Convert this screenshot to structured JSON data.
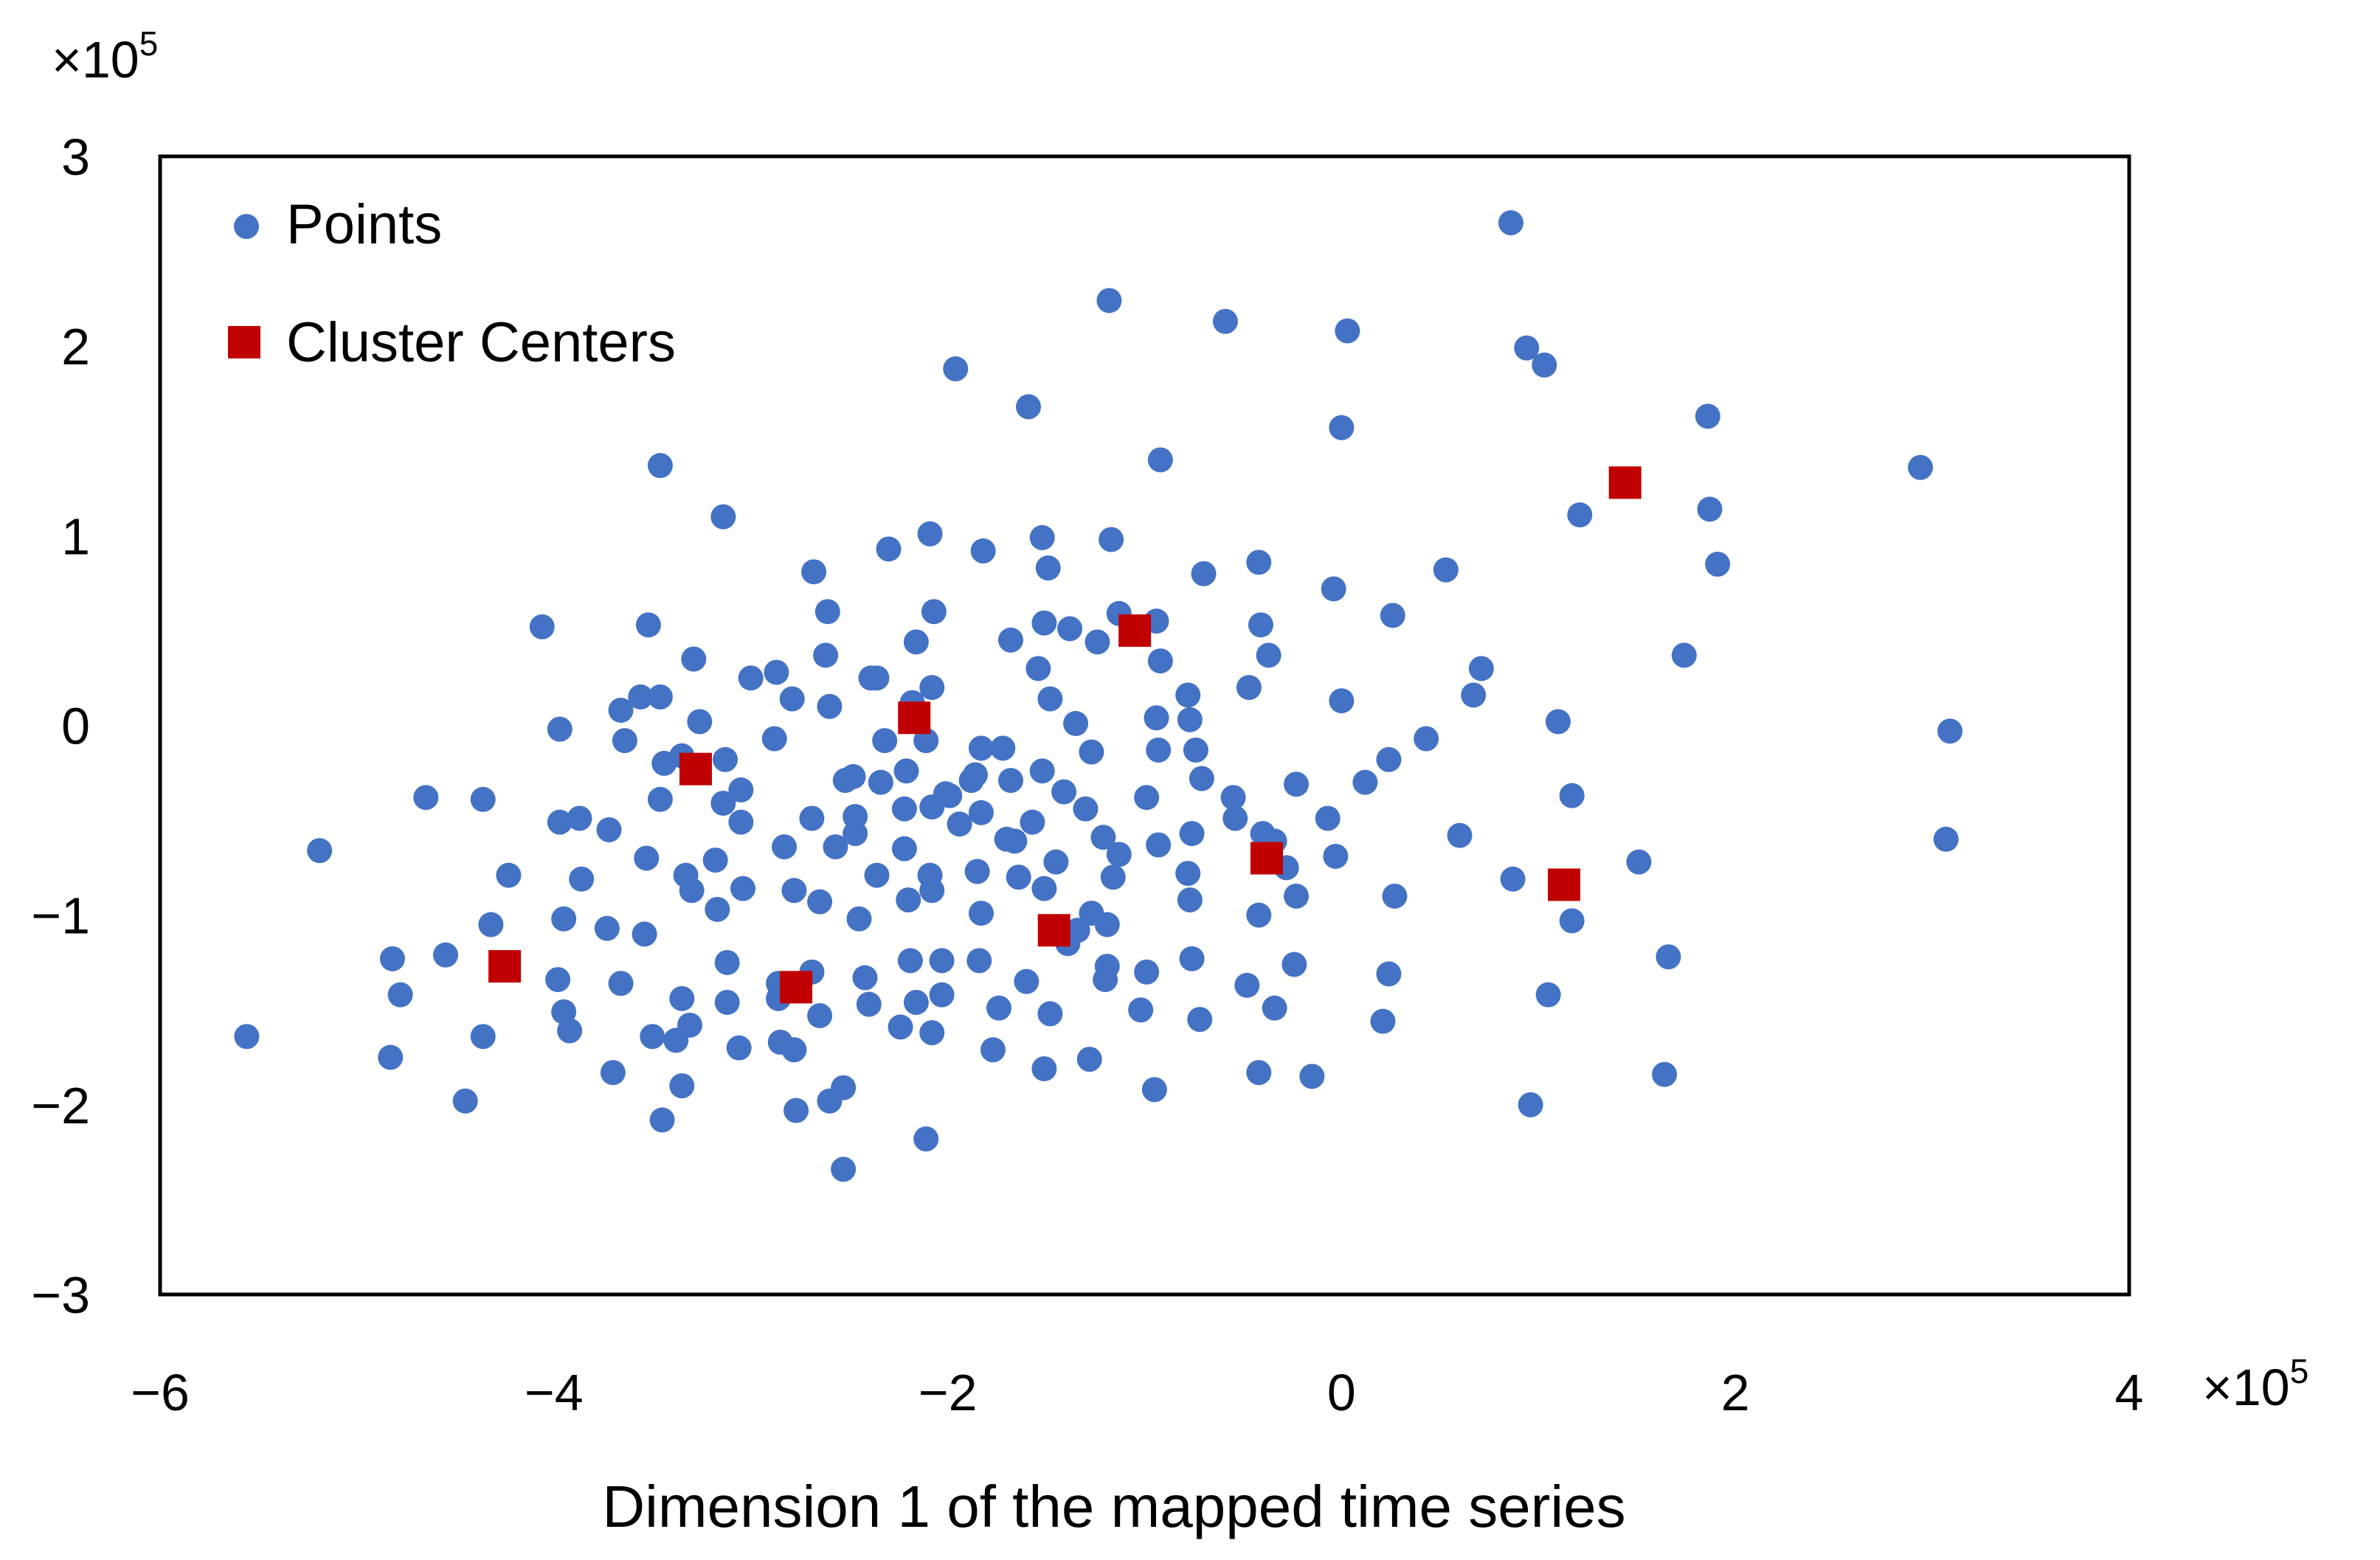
{
  "chart_data": {
    "type": "scatter",
    "title": "",
    "xlabel": "Dimension 1 of the mapped time series",
    "ylabel": "",
    "xlim": [
      -6,
      4
    ],
    "ylim": [
      -3,
      3
    ],
    "x_ticks": [
      "-6",
      "-4",
      "-2",
      "0",
      "2",
      "4"
    ],
    "y_ticks": [
      "-3",
      "-2",
      "-1",
      "0",
      "1",
      "2",
      "3"
    ],
    "x_multiplier": {
      "base": "×10",
      "exp": "5"
    },
    "y_multiplier": {
      "base": "×10",
      "exp": "5"
    },
    "grid": false,
    "legend": "top-left",
    "series": [
      {
        "name": "Points",
        "marker": "circle",
        "color": "#4472C4",
        "points": [
          [
            0.86,
            2.65
          ],
          [
            -1.18,
            2.24
          ],
          [
            -0.59,
            2.13
          ],
          [
            0.03,
            2.08
          ],
          [
            0.94,
            1.99
          ],
          [
            1.03,
            1.9
          ],
          [
            -1.96,
            1.88
          ],
          [
            -1.59,
            1.68
          ],
          [
            1.86,
            1.63
          ],
          [
            0.0,
            1.57
          ],
          [
            -3.46,
            1.37
          ],
          [
            2.94,
            1.36
          ],
          [
            -0.92,
            1.4
          ],
          [
            -3.14,
            1.1
          ],
          [
            1.21,
            1.11
          ],
          [
            1.87,
            1.14
          ],
          [
            -2.09,
            1.01
          ],
          [
            -1.52,
            0.99
          ],
          [
            -2.3,
            0.93
          ],
          [
            -1.82,
            0.92
          ],
          [
            -1.17,
            0.98
          ],
          [
            -2.68,
            0.81
          ],
          [
            -1.49,
            0.83
          ],
          [
            -0.7,
            0.8
          ],
          [
            -0.42,
            0.86
          ],
          [
            1.91,
            0.85
          ],
          [
            0.53,
            0.82
          ],
          [
            -0.04,
            0.72
          ],
          [
            -2.61,
            0.6
          ],
          [
            -2.07,
            0.6
          ],
          [
            -1.13,
            0.59
          ],
          [
            -1.24,
            0.44
          ],
          [
            -4.06,
            0.52
          ],
          [
            -3.52,
            0.53
          ],
          [
            -2.16,
            0.44
          ],
          [
            -1.68,
            0.45
          ],
          [
            -1.51,
            0.54
          ],
          [
            -1.38,
            0.51
          ],
          [
            -0.94,
            0.55
          ],
          [
            -0.41,
            0.53
          ],
          [
            0.26,
            0.58
          ],
          [
            -3.29,
            0.35
          ],
          [
            -2.62,
            0.37
          ],
          [
            -2.39,
            0.25
          ],
          [
            -2.08,
            0.2
          ],
          [
            -1.54,
            0.3
          ],
          [
            -0.92,
            0.34
          ],
          [
            -0.37,
            0.37
          ],
          [
            1.74,
            0.37
          ],
          [
            0.71,
            0.3
          ],
          [
            -3.0,
            0.25
          ],
          [
            -2.87,
            0.28
          ],
          [
            -3.46,
            0.15
          ],
          [
            -3.56,
            0.15
          ],
          [
            -2.79,
            0.14
          ],
          [
            -2.18,
            0.12
          ],
          [
            -1.48,
            0.14
          ],
          [
            -0.78,
            0.16
          ],
          [
            -0.47,
            0.2
          ],
          [
            0.67,
            0.16
          ],
          [
            0.0,
            0.13
          ],
          [
            -3.66,
            0.08
          ],
          [
            -2.6,
            0.1
          ],
          [
            -2.36,
            0.25
          ],
          [
            -1.35,
            0.01
          ],
          [
            -0.94,
            0.04
          ],
          [
            -0.77,
            0.03
          ],
          [
            1.1,
            0.02
          ],
          [
            -3.97,
            -0.02
          ],
          [
            -3.64,
            -0.08
          ],
          [
            -2.88,
            -0.07
          ],
          [
            -2.32,
            -0.08
          ],
          [
            -2.11,
            -0.08
          ],
          [
            -1.83,
            -0.12
          ],
          [
            -1.72,
            -0.12
          ],
          [
            -0.93,
            -0.13
          ],
          [
            -0.74,
            -0.13
          ],
          [
            3.09,
            -0.03
          ],
          [
            0.43,
            -0.07
          ],
          [
            -4.65,
            -0.38
          ],
          [
            -4.36,
            -0.39
          ],
          [
            -3.44,
            -0.2
          ],
          [
            -3.35,
            -0.16
          ],
          [
            -3.13,
            -0.18
          ],
          [
            -2.48,
            -0.27
          ],
          [
            -2.34,
            -0.3
          ],
          [
            -2.21,
            -0.24
          ],
          [
            -2.01,
            -0.36
          ],
          [
            -1.88,
            -0.29
          ],
          [
            -1.86,
            -0.26
          ],
          [
            -1.68,
            -0.29
          ],
          [
            -1.52,
            -0.24
          ],
          [
            -1.41,
            -0.35
          ],
          [
            -1.27,
            -0.14
          ],
          [
            -0.99,
            -0.38
          ],
          [
            -0.71,
            -0.28
          ],
          [
            -0.55,
            -0.38
          ],
          [
            -0.23,
            -0.31
          ],
          [
            0.12,
            -0.3
          ],
          [
            1.17,
            -0.37
          ],
          [
            -5.19,
            -0.66
          ],
          [
            -3.97,
            -0.51
          ],
          [
            -3.87,
            -0.49
          ],
          [
            -3.72,
            -0.55
          ],
          [
            -3.46,
            -0.39
          ],
          [
            -3.14,
            -0.41
          ],
          [
            -3.05,
            -0.51
          ],
          [
            -2.69,
            -0.49
          ],
          [
            -2.52,
            -0.29
          ],
          [
            -2.47,
            -0.48
          ],
          [
            -2.22,
            -0.44
          ],
          [
            -2.08,
            -0.43
          ],
          [
            -1.99,
            -0.37
          ],
          [
            -1.83,
            -0.46
          ],
          [
            -1.66,
            -0.61
          ],
          [
            -1.57,
            -0.51
          ],
          [
            -1.21,
            -0.59
          ],
          [
            -1.13,
            -0.68
          ],
          [
            -0.93,
            -0.63
          ],
          [
            -0.76,
            -0.57
          ],
          [
            -0.4,
            -0.57
          ],
          [
            -0.07,
            -0.49
          ],
          [
            0.6,
            -0.58
          ],
          [
            -4.23,
            -0.79
          ],
          [
            -3.86,
            -0.81
          ],
          [
            -3.53,
            -0.7
          ],
          [
            -3.33,
            -0.79
          ],
          [
            -3.18,
            -0.71
          ],
          [
            -2.83,
            -0.64
          ],
          [
            -2.57,
            -0.64
          ],
          [
            -2.36,
            -0.79
          ],
          [
            -2.22,
            -0.65
          ],
          [
            -2.09,
            -0.79
          ],
          [
            -1.85,
            -0.77
          ],
          [
            -1.64,
            -0.8
          ],
          [
            -1.45,
            -0.72
          ],
          [
            -1.16,
            -0.8
          ],
          [
            -0.78,
            -0.78
          ],
          [
            -0.28,
            -0.75
          ],
          [
            -0.03,
            -0.69
          ],
          [
            0.87,
            -0.81
          ],
          [
            1.51,
            -0.72
          ],
          [
            -4.32,
            -1.05
          ],
          [
            -3.95,
            -1.02
          ],
          [
            -3.73,
            -1.07
          ],
          [
            -3.54,
            -1.1
          ],
          [
            -3.3,
            -0.87
          ],
          [
            -3.17,
            -0.97
          ],
          [
            -3.04,
            -0.86
          ],
          [
            -2.78,
            -0.87
          ],
          [
            -2.65,
            -0.93
          ],
          [
            -2.45,
            -1.02
          ],
          [
            -2.2,
            -0.92
          ],
          [
            -2.08,
            -0.87
          ],
          [
            -1.83,
            -0.99
          ],
          [
            -1.51,
            -0.86
          ],
          [
            -1.34,
            -1.08
          ],
          [
            -1.27,
            -0.99
          ],
          [
            -1.19,
            -1.05
          ],
          [
            -0.77,
            -0.92
          ],
          [
            -0.42,
            -1.0
          ],
          [
            -0.23,
            -0.9
          ],
          [
            0.27,
            -0.9
          ],
          [
            1.17,
            -1.03
          ],
          [
            -4.82,
            -1.23
          ],
          [
            -4.55,
            -1.21
          ],
          [
            -3.98,
            -1.34
          ],
          [
            -3.66,
            -1.36
          ],
          [
            -3.35,
            -1.44
          ],
          [
            -3.12,
            -1.25
          ],
          [
            -2.86,
            -1.36
          ],
          [
            -2.69,
            -1.3
          ],
          [
            -2.42,
            -1.33
          ],
          [
            -2.19,
            -1.24
          ],
          [
            -2.03,
            -1.24
          ],
          [
            -1.84,
            -1.24
          ],
          [
            -1.6,
            -1.35
          ],
          [
            -1.39,
            -1.15
          ],
          [
            -1.19,
            -1.27
          ],
          [
            -0.99,
            -1.3
          ],
          [
            -0.76,
            -1.23
          ],
          [
            -0.48,
            -1.37
          ],
          [
            -0.24,
            -1.26
          ],
          [
            0.24,
            -1.31
          ],
          [
            1.66,
            -1.22
          ],
          [
            -4.78,
            -1.42
          ],
          [
            -3.95,
            -1.51
          ],
          [
            -3.5,
            -1.64
          ],
          [
            -3.31,
            -1.58
          ],
          [
            -3.12,
            -1.46
          ],
          [
            -2.86,
            -1.44
          ],
          [
            -2.65,
            -1.53
          ],
          [
            -2.4,
            -1.47
          ],
          [
            -2.16,
            -1.46
          ],
          [
            -2.03,
            -1.42
          ],
          [
            -1.74,
            -1.49
          ],
          [
            -1.48,
            -1.52
          ],
          [
            -1.2,
            -1.34
          ],
          [
            -1.02,
            -1.5
          ],
          [
            -0.72,
            -1.55
          ],
          [
            -0.34,
            -1.49
          ],
          [
            0.21,
            -1.56
          ],
          [
            1.05,
            -1.42
          ],
          [
            -5.56,
            -1.64
          ],
          [
            -4.83,
            -1.75
          ],
          [
            -4.36,
            -1.64
          ],
          [
            -3.92,
            -1.61
          ],
          [
            -3.7,
            -1.83
          ],
          [
            -3.38,
            -1.66
          ],
          [
            -3.06,
            -1.7
          ],
          [
            -2.85,
            -1.67
          ],
          [
            -2.78,
            -1.71
          ],
          [
            -2.24,
            -1.59
          ],
          [
            -2.08,
            -1.62
          ],
          [
            -1.77,
            -1.71
          ],
          [
            -1.51,
            -1.81
          ],
          [
            -1.28,
            -1.76
          ],
          [
            -0.42,
            -1.83
          ],
          [
            -0.15,
            -1.85
          ],
          [
            1.64,
            -1.84
          ],
          [
            -4.45,
            -1.98
          ],
          [
            -3.35,
            -1.9
          ],
          [
            -3.45,
            -2.08
          ],
          [
            -2.77,
            -2.03
          ],
          [
            -2.6,
            -1.98
          ],
          [
            -2.53,
            -1.91
          ],
          [
            -0.95,
            -1.92
          ],
          [
            0.96,
            -2.0
          ],
          [
            -2.11,
            -2.18
          ],
          [
            -2.53,
            -2.34
          ],
          [
            3.07,
            -0.6
          ],
          [
            -3.26,
            0.02
          ],
          [
            -3.05,
            -0.34
          ],
          [
            -2.47,
            -0.57
          ],
          [
            -1.94,
            -0.52
          ],
          [
            -1.7,
            -0.6
          ],
          [
            -1.3,
            -0.44
          ],
          [
            -0.54,
            -0.49
          ],
          [
            -0.34,
            -0.61
          ],
          [
            0.24,
            -0.18
          ]
        ]
      },
      {
        "name": "Cluster Centers",
        "marker": "square",
        "color": "#C00000",
        "points": [
          [
            1.44,
            1.28
          ],
          [
            -1.05,
            0.5
          ],
          [
            -2.17,
            0.04
          ],
          [
            -3.28,
            -0.23
          ],
          [
            -0.38,
            -0.7
          ],
          [
            1.13,
            -0.84
          ],
          [
            -1.46,
            -1.08
          ],
          [
            -4.25,
            -1.27
          ],
          [
            -2.77,
            -1.38
          ]
        ]
      }
    ]
  }
}
